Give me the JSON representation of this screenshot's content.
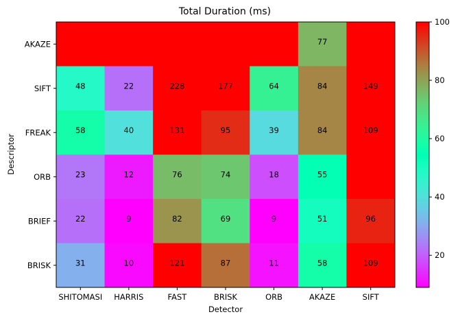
{
  "chart_data": {
    "type": "heatmap",
    "title": "Total Duration (ms)",
    "xlabel": "Detector",
    "ylabel": "Descriptor",
    "x_categories": [
      "SHITOMASI",
      "HARRIS",
      "FAST",
      "BRISK",
      "ORB",
      "AKAZE",
      "SIFT"
    ],
    "y_categories": [
      "AKAZE",
      "SIFT",
      "FREAK",
      "ORB",
      "BRIEF",
      "BRISK"
    ],
    "values": [
      [
        null,
        null,
        null,
        null,
        null,
        77,
        null
      ],
      [
        48,
        22,
        228,
        177,
        64,
        84,
        149
      ],
      [
        58,
        40,
        131,
        95,
        39,
        84,
        109
      ],
      [
        23,
        12,
        76,
        74,
        18,
        55,
        null
      ],
      [
        22,
        9,
        82,
        69,
        9,
        51,
        96
      ],
      [
        31,
        10,
        121,
        87,
        11,
        58,
        109
      ]
    ],
    "empty_cell_color": "#ff0000",
    "colormap": "rainbow",
    "color_range": [
      9,
      100
    ],
    "colorbar_ticks": [
      20,
      40,
      60,
      80,
      100
    ],
    "grid": false
  }
}
